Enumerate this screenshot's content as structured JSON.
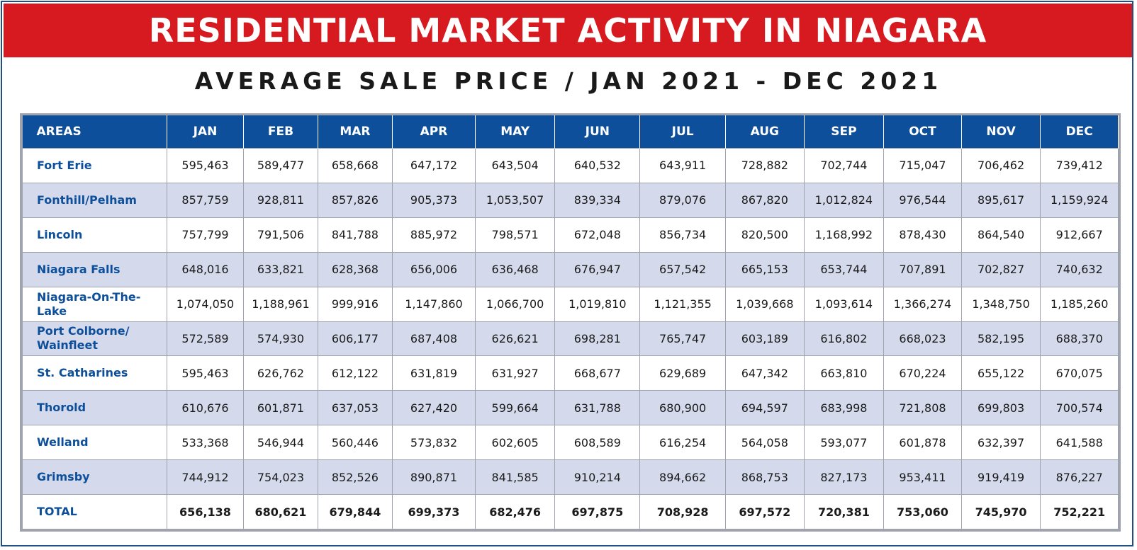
{
  "banner_title": "RESIDENTIAL MARKET ACTIVITY IN NIAGARA",
  "subtitle": "AVERAGE SALE PRICE / JAN 2021 - DEC 2021",
  "colors": {
    "banner_bg": "#d71920",
    "header_bg": "#0d4f9a",
    "area_text": "#0d4f9a",
    "row_shade": "#d4daec",
    "frame_border": "#1e4f86"
  },
  "chart_data": {
    "type": "table",
    "title": "AVERAGE SALE PRICE / JAN 2021 - DEC 2021",
    "columns": [
      "AREAS",
      "JAN",
      "FEB",
      "MAR",
      "APR",
      "MAY",
      "JUN",
      "JUL",
      "AUG",
      "SEP",
      "OCT",
      "NOV",
      "DEC"
    ],
    "rows": [
      {
        "area": "Fort Erie",
        "values": [
          "595,463",
          "589,477",
          "658,668",
          "647,172",
          "643,504",
          "640,532",
          "643,911",
          "728,882",
          "702,744",
          "715,047",
          "706,462",
          "739,412"
        ]
      },
      {
        "area": "Fonthill/Pelham",
        "values": [
          "857,759",
          "928,811",
          "857,826",
          "905,373",
          "1,053,507",
          "839,334",
          "879,076",
          "867,820",
          "1,012,824",
          "976,544",
          "895,617",
          "1,159,924"
        ]
      },
      {
        "area": "Lincoln",
        "values": [
          "757,799",
          "791,506",
          "841,788",
          "885,972",
          "798,571",
          "672,048",
          "856,734",
          "820,500",
          "1,168,992",
          "878,430",
          "864,540",
          "912,667"
        ]
      },
      {
        "area": "Niagara Falls",
        "values": [
          "648,016",
          "633,821",
          "628,368",
          "656,006",
          "636,468",
          "676,947",
          "657,542",
          "665,153",
          "653,744",
          "707,891",
          "702,827",
          "740,632"
        ]
      },
      {
        "area": "Niagara-On-The-Lake",
        "values": [
          "1,074,050",
          "1,188,961",
          "999,916",
          "1,147,860",
          "1,066,700",
          "1,019,810",
          "1,121,355",
          "1,039,668",
          "1,093,614",
          "1,366,274",
          "1,348,750",
          "1,185,260"
        ]
      },
      {
        "area": "Port Colborne/ Wainfleet",
        "values": [
          "572,589",
          "574,930",
          "606,177",
          "687,408",
          "626,621",
          "698,281",
          "765,747",
          "603,189",
          "616,802",
          "668,023",
          "582,195",
          "688,370"
        ]
      },
      {
        "area": "St. Catharines",
        "values": [
          "595,463",
          "626,762",
          "612,122",
          "631,819",
          "631,927",
          "668,677",
          "629,689",
          "647,342",
          "663,810",
          "670,224",
          "655,122",
          "670,075"
        ]
      },
      {
        "area": "Thorold",
        "values": [
          "610,676",
          "601,871",
          "637,053",
          "627,420",
          "599,664",
          "631,788",
          "680,900",
          "694,597",
          "683,998",
          "721,808",
          "699,803",
          "700,574"
        ]
      },
      {
        "area": "Welland",
        "values": [
          "533,368",
          "546,944",
          "560,446",
          "573,832",
          "602,605",
          "608,589",
          "616,254",
          "564,058",
          "593,077",
          "601,878",
          "632,397",
          "641,588"
        ]
      },
      {
        "area": "Grimsby",
        "values": [
          "744,912",
          "754,023",
          "852,526",
          "890,871",
          "841,585",
          "910,214",
          "894,662",
          "868,753",
          "827,173",
          "953,411",
          "919,419",
          "876,227"
        ]
      }
    ],
    "total": {
      "area": "TOTAL",
      "values": [
        "656,138",
        "680,621",
        "679,844",
        "699,373",
        "682,476",
        "697,875",
        "708,928",
        "697,572",
        "720,381",
        "753,060",
        "745,970",
        "752,221"
      ]
    }
  }
}
